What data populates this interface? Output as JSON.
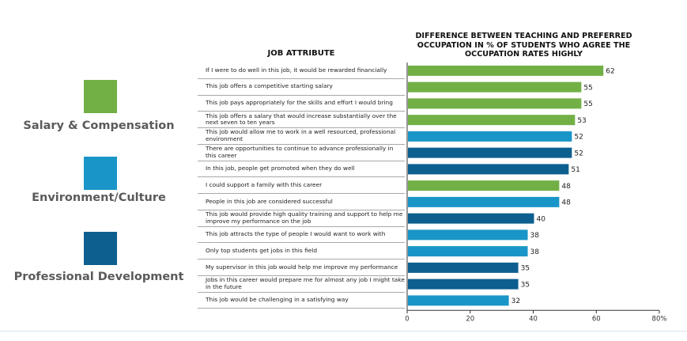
{
  "legend": [
    {
      "label": "Salary & Compensation",
      "color": "#72b046"
    },
    {
      "label": "Environment/Culture",
      "color": "#1a95c8"
    },
    {
      "label": "Professional Development",
      "color": "#0c5f8f"
    }
  ],
  "table": {
    "attribute_header": "JOB ATTRIBUTE"
  },
  "chart_data": {
    "type": "bar",
    "orientation": "horizontal",
    "title": "DIFFERENCE BETWEEN TEACHING AND PREFERRED OCCUPATION IN % OF STUDENTS WHO AGREE THE OCCUPATION RATES HIGHLY",
    "xlim": [
      0,
      80
    ],
    "ticks": [
      "0",
      "20",
      "40",
      "60",
      "80%"
    ],
    "tick_values": [
      0,
      20,
      40,
      60,
      80
    ],
    "categories": [
      "If I were to do well in this job, it would be rewarded financially",
      "This job offers a competitive starting salary",
      "This job pays appropriately for the skills and effort I would bring",
      "This job offers a salary that would increase substantially over the next seven to ten years",
      "This job would allow me to work in a well resourced, professional environment",
      "There are opportunities to continue to advance professionally in this career",
      "In this job, people get promoted when they do well",
      "I could support a family with this career",
      "People in this job are considered successful",
      "This job would provide high quality training and support to help me improve my performance on the job",
      "This job attracts the type of people I would want to work with",
      "Only top students get jobs in this field",
      "My supervisor in this job would help me improve my performance",
      "Jobs in this career would prepare me for almost any job I might take in the future",
      "This job would be challenging in a satisfying way"
    ],
    "values": [
      62,
      55,
      55,
      53,
      52,
      52,
      51,
      48,
      48,
      40,
      38,
      38,
      35,
      35,
      32
    ],
    "groups": [
      "Salary & Compensation",
      "Salary & Compensation",
      "Salary & Compensation",
      "Salary & Compensation",
      "Environment/Culture",
      "Professional Development",
      "Professional Development",
      "Salary & Compensation",
      "Environment/Culture",
      "Professional Development",
      "Environment/Culture",
      "Environment/Culture",
      "Professional Development",
      "Professional Development",
      "Environment/Culture"
    ]
  }
}
